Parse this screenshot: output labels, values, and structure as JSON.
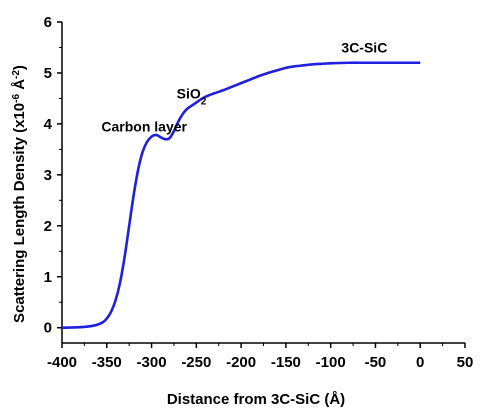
{
  "chart_data": {
    "type": "line",
    "xlabel": "Distance from 3C-SiC (Å)",
    "ylabel_main": "Scattering Length Density (x10",
    "ylabel_exp": "-6",
    "ylabel_unit": " Å",
    "ylabel_unit_exp": "-2",
    "ylabel_close": ")",
    "xlim": [
      -400,
      50
    ],
    "ylim": [
      -0.3,
      6
    ],
    "x_ticks": [
      -400,
      -350,
      -300,
      -250,
      -200,
      -150,
      -100,
      -50,
      0,
      50
    ],
    "x_tick_labels": [
      "-400",
      "-350",
      "-300",
      "-250",
      "-200",
      "-150",
      "-100",
      "-50",
      "0",
      "50"
    ],
    "y_ticks": [
      0,
      1,
      2,
      3,
      4,
      5,
      6
    ],
    "y_tick_labels": [
      "0",
      "1",
      "2",
      "3",
      "4",
      "5",
      "6"
    ],
    "grid": false,
    "line_color": "#1f1fe0",
    "series": [
      {
        "x": [
          -400,
          -380,
          -365,
          -355,
          -350,
          -345,
          -340,
          -335,
          -330,
          -325,
          -320,
          -315,
          -310,
          -305,
          -300,
          -297,
          -294,
          -290,
          -285,
          -280,
          -275,
          -270,
          -265,
          -260,
          -255,
          -250,
          -245,
          -240,
          -230,
          -220,
          -210,
          -200,
          -190,
          -180,
          -170,
          -160,
          -150,
          -140,
          -130,
          -120,
          -110,
          -100,
          -80,
          -60,
          -40,
          -20,
          0
        ],
        "y": [
          0.0,
          0.01,
          0.04,
          0.1,
          0.18,
          0.32,
          0.55,
          0.9,
          1.4,
          2.0,
          2.6,
          3.1,
          3.45,
          3.65,
          3.75,
          3.78,
          3.78,
          3.74,
          3.7,
          3.72,
          3.86,
          4.05,
          4.2,
          4.3,
          4.36,
          4.42,
          4.48,
          4.53,
          4.6,
          4.66,
          4.73,
          4.8,
          4.87,
          4.94,
          5.0,
          5.05,
          5.1,
          5.13,
          5.15,
          5.17,
          5.18,
          5.19,
          5.2,
          5.2,
          5.2,
          5.2,
          5.2
        ]
      }
    ],
    "annotations": [
      {
        "text": "Carbon layer",
        "x": -356,
        "y": 3.85
      },
      {
        "text": "SiO",
        "sub": "2",
        "x": -272,
        "y": 4.5
      },
      {
        "text": "3C-SiC",
        "x": -88,
        "y": 5.4
      }
    ]
  }
}
